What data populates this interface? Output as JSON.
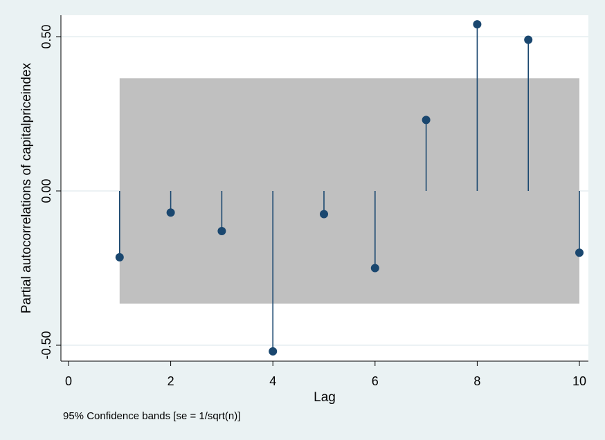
{
  "chart_data": {
    "type": "scatter",
    "style": "spike",
    "title": "",
    "xlabel": "Lag",
    "ylabel": "Partial autocorrelations of capitalpriceindex",
    "note": "95% Confidence bands [se = 1/sqrt(n)]",
    "xlim": [
      0,
      10
    ],
    "ylim": [
      -0.55,
      0.57
    ],
    "x_ticks": [
      0,
      2,
      4,
      6,
      8,
      10
    ],
    "x_tick_labels": [
      "0",
      "2",
      "4",
      "6",
      "8",
      "10"
    ],
    "y_ticks": [
      -0.5,
      0,
      0.5
    ],
    "y_tick_labels": [
      "-0.50",
      "0.00",
      "0.50"
    ],
    "grid": true,
    "confidence_band": {
      "x_start": 1,
      "x_end": 10,
      "lower": -0.365,
      "upper": 0.365,
      "level": "95%"
    },
    "x": [
      1,
      2,
      3,
      4,
      5,
      6,
      7,
      8,
      9,
      10
    ],
    "values": [
      -0.215,
      -0.07,
      -0.13,
      -0.52,
      -0.075,
      -0.25,
      0.23,
      0.54,
      0.49,
      -0.2
    ],
    "colors": {
      "marker": "#1a476f",
      "band": "#c0c0c0",
      "plot_bg": "#ffffff",
      "outer_bg": "#eaf2f3",
      "grid": "#e6eef0",
      "axis": "#000000"
    }
  }
}
